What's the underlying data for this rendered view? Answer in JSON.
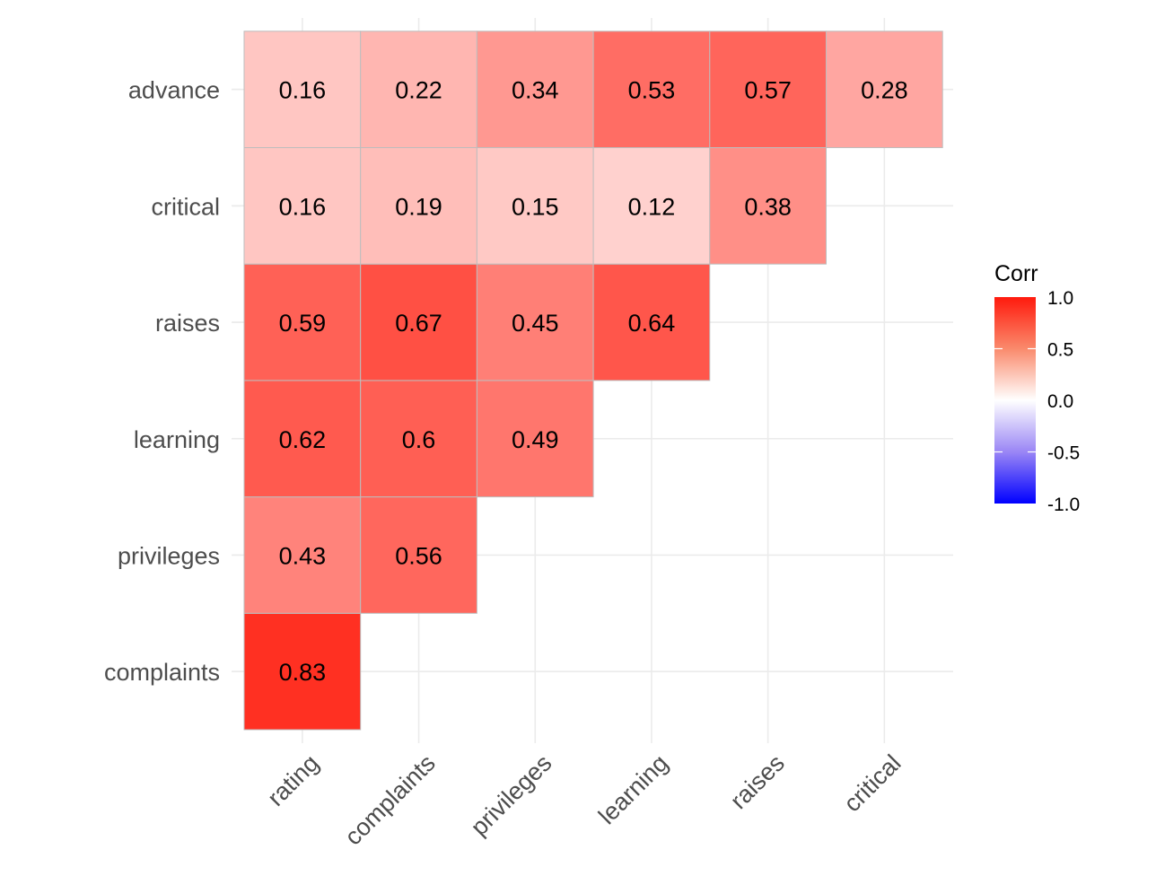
{
  "chart_data": {
    "type": "heatmap",
    "title": "",
    "xlabel": "",
    "ylabel": "",
    "x_categories": [
      "rating",
      "complaints",
      "privileges",
      "learning",
      "raises",
      "critical"
    ],
    "y_categories": [
      "complaints",
      "privileges",
      "learning",
      "raises",
      "critical",
      "advance"
    ],
    "cells": [
      {
        "x": "rating",
        "y": "complaints",
        "value": 0.83,
        "label": "0.83"
      },
      {
        "x": "rating",
        "y": "privileges",
        "value": 0.43,
        "label": "0.43"
      },
      {
        "x": "complaints",
        "y": "privileges",
        "value": 0.56,
        "label": "0.56"
      },
      {
        "x": "rating",
        "y": "learning",
        "value": 0.62,
        "label": "0.62"
      },
      {
        "x": "complaints",
        "y": "learning",
        "value": 0.6,
        "label": "0.6"
      },
      {
        "x": "privileges",
        "y": "learning",
        "value": 0.49,
        "label": "0.49"
      },
      {
        "x": "rating",
        "y": "raises",
        "value": 0.59,
        "label": "0.59"
      },
      {
        "x": "complaints",
        "y": "raises",
        "value": 0.67,
        "label": "0.67"
      },
      {
        "x": "privileges",
        "y": "raises",
        "value": 0.45,
        "label": "0.45"
      },
      {
        "x": "learning",
        "y": "raises",
        "value": 0.64,
        "label": "0.64"
      },
      {
        "x": "rating",
        "y": "critical",
        "value": 0.16,
        "label": "0.16"
      },
      {
        "x": "complaints",
        "y": "critical",
        "value": 0.19,
        "label": "0.19"
      },
      {
        "x": "privileges",
        "y": "critical",
        "value": 0.15,
        "label": "0.15"
      },
      {
        "x": "learning",
        "y": "critical",
        "value": 0.12,
        "label": "0.12"
      },
      {
        "x": "raises",
        "y": "critical",
        "value": 0.38,
        "label": "0.38"
      },
      {
        "x": "rating",
        "y": "advance",
        "value": 0.16,
        "label": "0.16"
      },
      {
        "x": "complaints",
        "y": "advance",
        "value": 0.22,
        "label": "0.22"
      },
      {
        "x": "privileges",
        "y": "advance",
        "value": 0.34,
        "label": "0.34"
      },
      {
        "x": "learning",
        "y": "advance",
        "value": 0.53,
        "label": "0.53"
      },
      {
        "x": "raises",
        "y": "advance",
        "value": 0.57,
        "label": "0.57"
      },
      {
        "x": "critical",
        "y": "advance",
        "value": 0.28,
        "label": "0.28"
      }
    ],
    "legend": {
      "title": "Corr",
      "position": "right",
      "range": [
        -1.0,
        1.0
      ],
      "ticks": [
        "1.0",
        "0.5",
        "0.0",
        "-0.5",
        "-1.0"
      ],
      "tick_values": [
        1.0,
        0.5,
        0.0,
        -0.5,
        -1.0
      ],
      "colors": {
        "low": "#0000ff",
        "mid": "#ffffff",
        "high": "#ff0000"
      }
    },
    "grid": true
  }
}
